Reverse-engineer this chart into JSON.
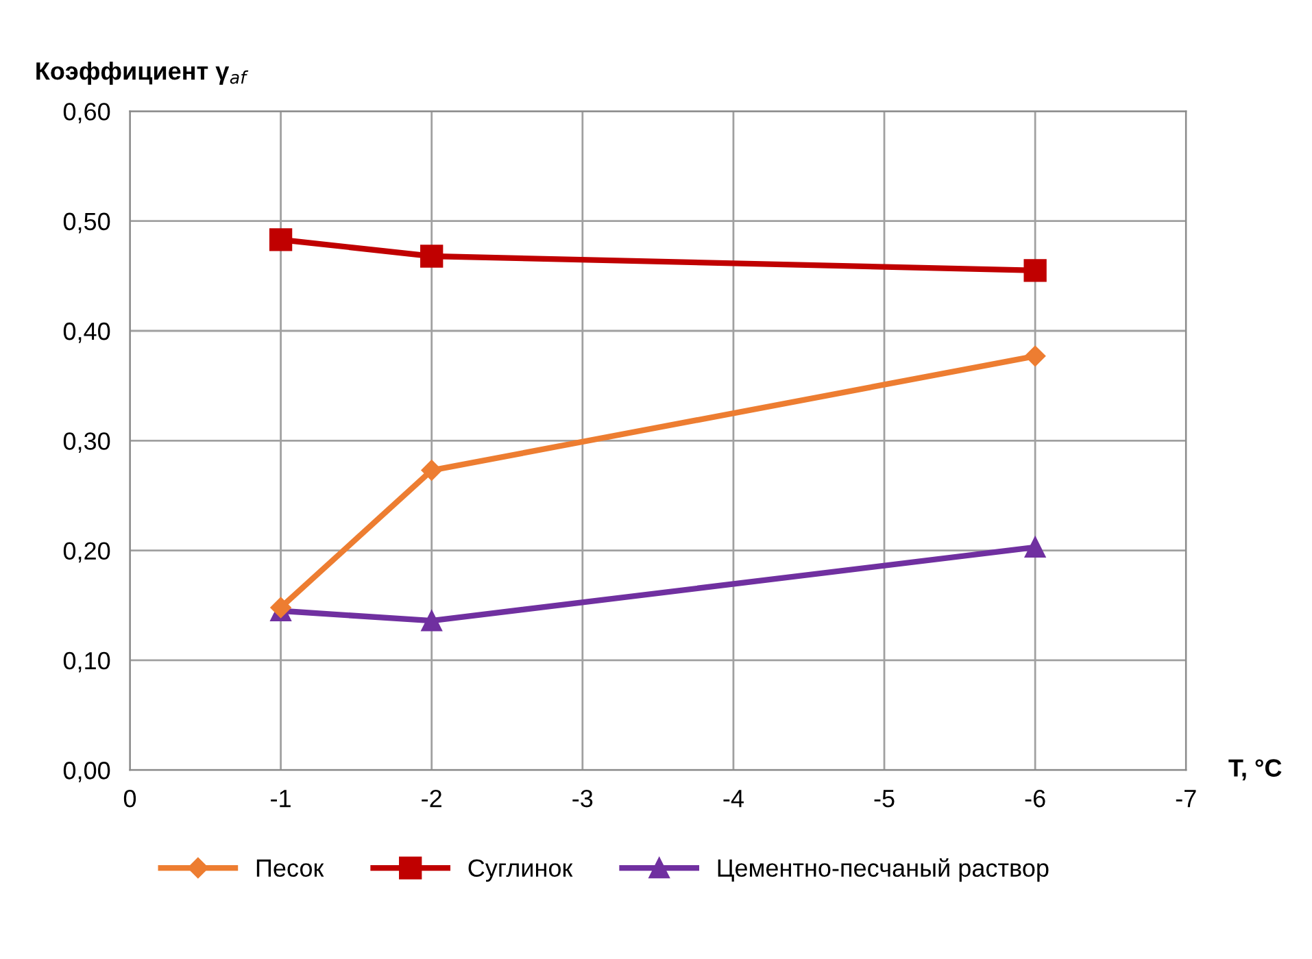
{
  "chart_data": {
    "type": "line",
    "ylabel": "Коэффициент γ$_{af}$",
    "xlabel": "T, °C",
    "x": [
      -1,
      -2,
      -6
    ],
    "series": [
      {
        "name": "Песок",
        "color": "#ed7d31",
        "marker": "diamond",
        "values": [
          0.148,
          0.273,
          0.377
        ]
      },
      {
        "name": "Суглинок",
        "color": "#c00000",
        "marker": "square",
        "values": [
          0.483,
          0.468,
          0.455
        ]
      },
      {
        "name": "Цементно-песчаный раствор",
        "color": "#7030a0",
        "marker": "triangle",
        "values": [
          0.145,
          0.136,
          0.203
        ]
      }
    ],
    "xlim": [
      0,
      -7
    ],
    "xticks": [
      0,
      -1,
      -2,
      -3,
      -4,
      -5,
      -6,
      -7
    ],
    "ylim": [
      0,
      0.6
    ],
    "yticks": [
      {
        "value": 0,
        "label": "0,00"
      },
      {
        "value": 0.1,
        "label": "0,10"
      },
      {
        "value": 0.2,
        "label": "0,20"
      },
      {
        "value": 0.3,
        "label": "0,30"
      },
      {
        "value": 0.4,
        "label": "0,40"
      },
      {
        "value": 0.5,
        "label": "0,50"
      },
      {
        "value": 0.6,
        "label": "0,60"
      }
    ],
    "grid": true,
    "legend": "bottom",
    "line_style": "solid"
  }
}
